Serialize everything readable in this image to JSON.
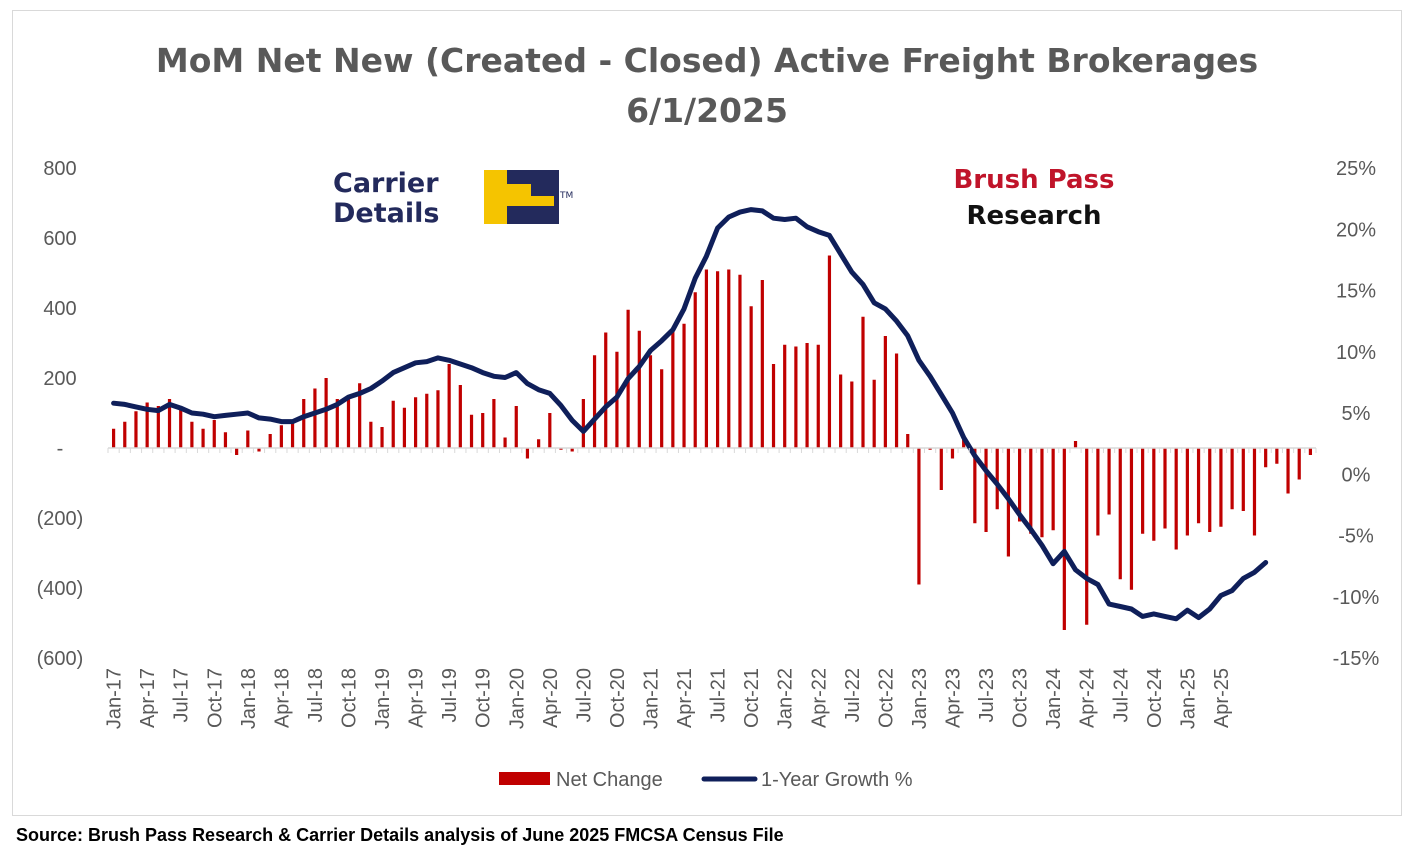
{
  "chart_data": {
    "type": "bar+line",
    "title": "MoM Net New (Created - Closed) Active Freight Brokerages",
    "subtitle": "6/1/2025",
    "x_tick_labels": [
      "Jan-17",
      "Apr-17",
      "Jul-17",
      "Oct-17",
      "Jan-18",
      "Apr-18",
      "Jul-18",
      "Oct-18",
      "Jan-19",
      "Apr-19",
      "Jul-19",
      "Oct-19",
      "Jan-20",
      "Apr-20",
      "Jul-20",
      "Oct-20",
      "Jan-21",
      "Apr-21",
      "Jul-21",
      "Oct-21",
      "Jan-22",
      "Apr-22",
      "Jul-22",
      "Oct-22",
      "Jan-23",
      "Apr-23",
      "Jul-23",
      "Oct-23",
      "Jan-24",
      "Apr-24",
      "Jul-24",
      "Oct-24",
      "Jan-25",
      "Apr-25"
    ],
    "left_axis": {
      "ticks": [
        "800",
        "600",
        "400",
        "200",
        "-",
        "(200)",
        "(400)",
        "(600)"
      ],
      "ylim": [
        -600,
        800
      ]
    },
    "right_axis": {
      "ticks": [
        "25%",
        "20%",
        "15%",
        "10%",
        "5%",
        "0%",
        "-5%",
        "-10%",
        "-15%"
      ],
      "ylim": [
        -15,
        25
      ]
    },
    "legend_position": "bottom",
    "series": [
      {
        "name": "Net Change",
        "kind": "bar",
        "axis": "left",
        "color": "#c00000",
        "values": [
          55,
          75,
          105,
          130,
          120,
          140,
          115,
          75,
          55,
          80,
          45,
          -20,
          50,
          -10,
          40,
          65,
          70,
          140,
          170,
          200,
          140,
          150,
          185,
          75,
          60,
          135,
          115,
          145,
          155,
          165,
          240,
          180,
          95,
          100,
          140,
          30,
          120,
          -30,
          25,
          100,
          -5,
          -10,
          140,
          265,
          330,
          275,
          395,
          335,
          265,
          225,
          340,
          355,
          445,
          510,
          505,
          510,
          495,
          405,
          480,
          240,
          295,
          290,
          300,
          295,
          550,
          210,
          190,
          375,
          195,
          320,
          270,
          40,
          -390,
          -5,
          -120,
          -30,
          25,
          -215,
          -240,
          -175,
          -310,
          -210,
          -245,
          -255,
          -235,
          -520,
          20,
          -505,
          -250,
          -190,
          -375,
          -405,
          -245,
          -265,
          -230,
          -290,
          -250,
          -215,
          -240,
          -225,
          -175,
          -180,
          -250,
          -55,
          -45,
          -130,
          -90,
          -20
        ]
      },
      {
        "name": "1-Year Growth %",
        "kind": "line",
        "axis": "right",
        "color": "#0f1f5a",
        "values": [
          5.8,
          5.7,
          5.5,
          5.3,
          5.2,
          5.7,
          5.4,
          5.0,
          4.9,
          4.7,
          4.8,
          4.9,
          5.0,
          4.6,
          4.5,
          4.3,
          4.3,
          4.7,
          5.0,
          5.3,
          5.7,
          6.3,
          6.6,
          7.0,
          7.6,
          8.3,
          8.7,
          9.1,
          9.2,
          9.5,
          9.3,
          9.0,
          8.7,
          8.3,
          8.0,
          7.9,
          8.3,
          7.4,
          6.9,
          6.6,
          5.6,
          4.4,
          3.5,
          4.5,
          5.5,
          6.3,
          7.8,
          8.8,
          10.1,
          10.9,
          11.8,
          13.5,
          16.0,
          17.8,
          20.1,
          21.0,
          21.4,
          21.6,
          21.5,
          20.9,
          20.8,
          20.9,
          20.2,
          19.8,
          19.5,
          18.0,
          16.5,
          15.5,
          14.0,
          13.5,
          12.5,
          11.3,
          9.3,
          8.0,
          6.5,
          5.0,
          3.0,
          1.5,
          0.3,
          -0.8,
          -2.0,
          -3.3,
          -4.5,
          -5.8,
          -7.3,
          -6.3,
          -7.8,
          -8.5,
          -9.0,
          -10.6,
          -10.8,
          -11.0,
          -11.6,
          -11.4,
          -11.6,
          -11.8,
          -11.1,
          -11.7,
          -11.0,
          -9.9,
          -9.5,
          -8.5,
          -8.0,
          -7.2
        ]
      }
    ]
  },
  "logos": {
    "carrier_details": {
      "line1": "Carrier",
      "line2": "Details",
      "tm": "TM",
      "colors": {
        "navy": "#232a5c",
        "yellow": "#f5c400"
      }
    },
    "brush_pass": {
      "line1": "Brush Pass",
      "line2": "Research",
      "colors": {
        "red": "#c0142a",
        "black": "#111111"
      }
    }
  },
  "source_note": "Source: Brush Pass Research & Carrier Details analysis of June 2025 FMCSA Census File"
}
